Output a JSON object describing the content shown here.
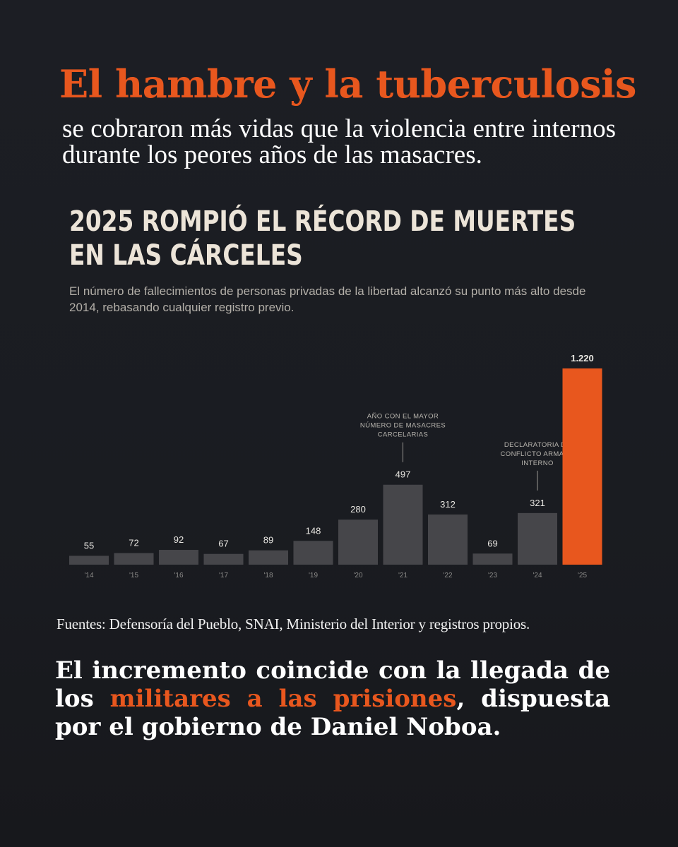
{
  "header": {
    "title": "El hambre y la tuberculosis",
    "subtitle": "se cobraron más vidas que la violencia entre internos durante los peores años de las masacres."
  },
  "chart_data": {
    "type": "bar",
    "title": "2025 rompió el récord de muertes en las cárceles",
    "subtitle": "El número de fallecimientos de personas privadas de la libertad alcanzó su punto más alto desde 2014, rebasando cualquier registro previo.",
    "categories": [
      "'14",
      "'15",
      "'16",
      "'17",
      "'18",
      "'19",
      "'20",
      "'21",
      "'22",
      "'23",
      "'24",
      "'25"
    ],
    "values": [
      55,
      72,
      92,
      67,
      89,
      148,
      280,
      497,
      312,
      69,
      321,
      1220
    ],
    "value_labels": [
      "55",
      "72",
      "92",
      "67",
      "89",
      "148",
      "280",
      "497",
      "312",
      "69",
      "321",
      "1.220"
    ],
    "highlight_index": 11,
    "ylim": [
      0,
      1220
    ],
    "grid": false,
    "colors": {
      "bar": "#46464a",
      "highlight": "#e8571e",
      "label": "#e8e6e1",
      "tick": "#8b8a88",
      "annotation": "#b7b4ae"
    },
    "annotations": [
      {
        "category": "'21",
        "lines": [
          "AÑO CON EL MAYOR",
          "NÚMERO DE MASACRES",
          "CARCELARIAS"
        ]
      },
      {
        "category": "'24",
        "lines": [
          "DECLARATORIA DE",
          "CONFLICTO ARMADO",
          "INTERNO"
        ]
      }
    ]
  },
  "footer": {
    "source": "Fuentes: Defensoría del Pueblo, SNAI, Ministerio del Interior y registros propios.",
    "closing_pre": "El incremento coincide con la llegada de los ",
    "closing_highlight": "militares a las prisiones",
    "closing_post": ", dispuesta por el gobierno de Daniel Noboa."
  }
}
